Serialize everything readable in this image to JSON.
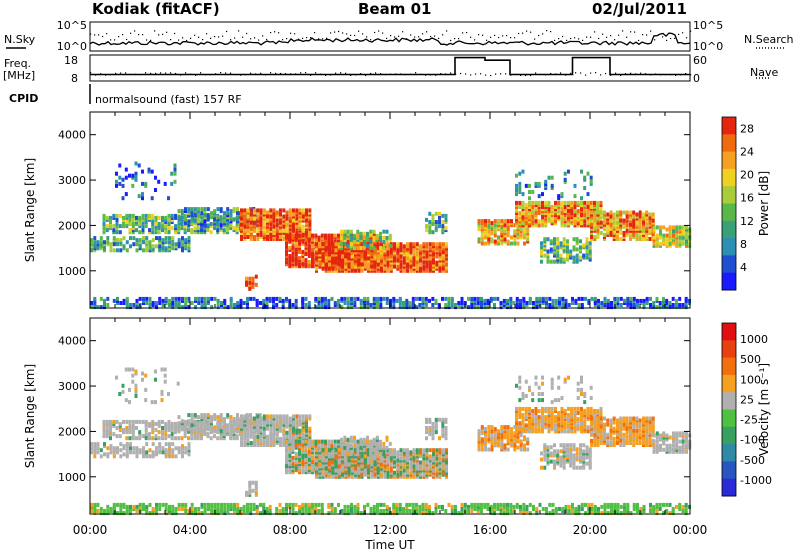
{
  "header": {
    "station": "Kodiak (fitACF)",
    "beam": "Beam 01",
    "date": "02/Jul/2011"
  },
  "side_labels": {
    "nsky": "N.Sky",
    "nsearch": "N.Search",
    "freq": "Freq.",
    "freq_unit": "[MHz]",
    "nave": "Nave",
    "cpid": "CPID",
    "cpid_text": "normalsound (fast) 157 RF"
  },
  "chart_data": [
    {
      "type": "line",
      "name": "noise",
      "y_left_ticks": [
        "10^5",
        "10^0"
      ],
      "y_right_ticks": [
        "10^5",
        "10^0"
      ],
      "series": [
        {
          "name": "N.Sky",
          "style": "solid"
        },
        {
          "name": "N.Search",
          "style": "dotted"
        }
      ]
    },
    {
      "type": "line",
      "name": "frequency-nave",
      "y_left_ticks": [
        18,
        8
      ],
      "y_right_ticks": [
        60,
        0
      ],
      "ylim_left": [
        8,
        18
      ],
      "ylim_right": [
        0,
        60
      ],
      "series": [
        {
          "name": "Freq",
          "style": "solid",
          "x": [
            0,
            14.6,
            14.6,
            15.8,
            15.8,
            16.8,
            16.8,
            19.3,
            19.3,
            20.8,
            20.8,
            24
          ],
          "y": [
            10.5,
            10.5,
            17.0,
            17.0,
            16.0,
            16.0,
            10.5,
            10.5,
            17.0,
            17.0,
            10.5,
            10.5
          ]
        },
        {
          "name": "Nave",
          "style": "dotted"
        }
      ]
    },
    {
      "type": "heatmap",
      "name": "power",
      "xlabel": "",
      "ylabel": "Slant Range [km]",
      "xlim": [
        0,
        24
      ],
      "ylim": [
        180,
        4500
      ],
      "y_ticks": [
        1000,
        2000,
        3000,
        4000
      ],
      "colorbar": {
        "label": "Power [dB]",
        "ticks": [
          4,
          8,
          12,
          16,
          20,
          24,
          28
        ],
        "range": [
          0,
          30
        ],
        "colors": [
          "#1a1aff",
          "#1f4fd0",
          "#2d8fb4",
          "#3aa07a",
          "#5ab84a",
          "#a8cc3a",
          "#f0d020",
          "#f5a020",
          "#f06a10",
          "#e52510"
        ]
      }
    },
    {
      "type": "heatmap",
      "name": "velocity",
      "xlabel": "Time UT",
      "ylabel": "Slant Range [km]",
      "xlim": [
        0,
        24
      ],
      "ylim": [
        180,
        4500
      ],
      "x_ticks": [
        "00:00",
        "04:00",
        "08:00",
        "12:00",
        "16:00",
        "20:00",
        "00:00"
      ],
      "y_ticks": [
        1000,
        2000,
        3000,
        4000
      ],
      "colorbar": {
        "label": "Velocity [m s⁻¹]",
        "ticks": [
          1000,
          500,
          100,
          25,
          -25,
          -100,
          -500,
          -1000
        ],
        "range": [
          -1200,
          1200
        ],
        "colors": [
          "#2a2ad8",
          "#2855c0",
          "#2f8aa8",
          "#39a060",
          "#4fc040",
          "#b0b0b0",
          "#f5a020",
          "#f07010",
          "#e84010",
          "#e01010"
        ]
      }
    }
  ]
}
